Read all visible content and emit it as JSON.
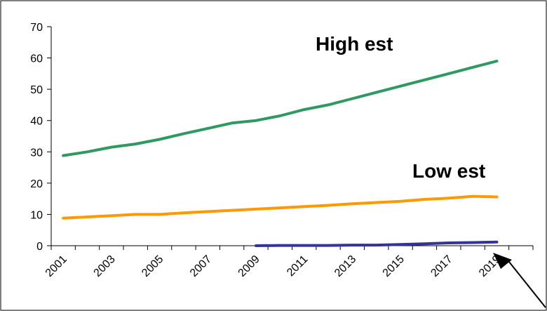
{
  "chart_data": {
    "type": "line",
    "x": [
      2001,
      2002,
      2003,
      2004,
      2005,
      2006,
      2007,
      2008,
      2009,
      2010,
      2011,
      2012,
      2013,
      2014,
      2015,
      2016,
      2017,
      2018,
      2019,
      2020
    ],
    "x_tick_labels": [
      "2001",
      "2003",
      "2005",
      "2007",
      "2009",
      "2011",
      "2013",
      "2015",
      "2017",
      "2019"
    ],
    "ylim": [
      0,
      70
    ],
    "y_ticks": [
      0,
      10,
      20,
      30,
      40,
      50,
      60,
      70
    ],
    "grid": false,
    "series": [
      {
        "name": "High est",
        "color": "#2e9960",
        "values": [
          28.8,
          30.0,
          31.5,
          32.5,
          34.0,
          35.8,
          37.5,
          39.2,
          40.0,
          41.5,
          43.5,
          45.0,
          47.0,
          49.0,
          51.0,
          53.0,
          55.0,
          57.0,
          59.0,
          null
        ]
      },
      {
        "name": "Low est",
        "color": "#ff9900",
        "values": [
          8.8,
          9.2,
          9.6,
          10.0,
          10.0,
          10.5,
          10.9,
          11.3,
          11.7,
          12.1,
          12.5,
          12.9,
          13.4,
          13.8,
          14.2,
          14.8,
          15.2,
          15.8,
          15.6,
          null
        ]
      },
      {
        "name": "",
        "color": "#333399",
        "values": [
          null,
          null,
          null,
          null,
          null,
          null,
          null,
          null,
          0.0,
          0.1,
          0.1,
          0.1,
          0.2,
          0.2,
          0.4,
          0.6,
          0.9,
          1.0,
          1.2,
          null
        ]
      }
    ],
    "annotations": [
      {
        "text": "High est",
        "series_index": 0
      },
      {
        "text": "Low est",
        "series_index": 1
      }
    ]
  }
}
